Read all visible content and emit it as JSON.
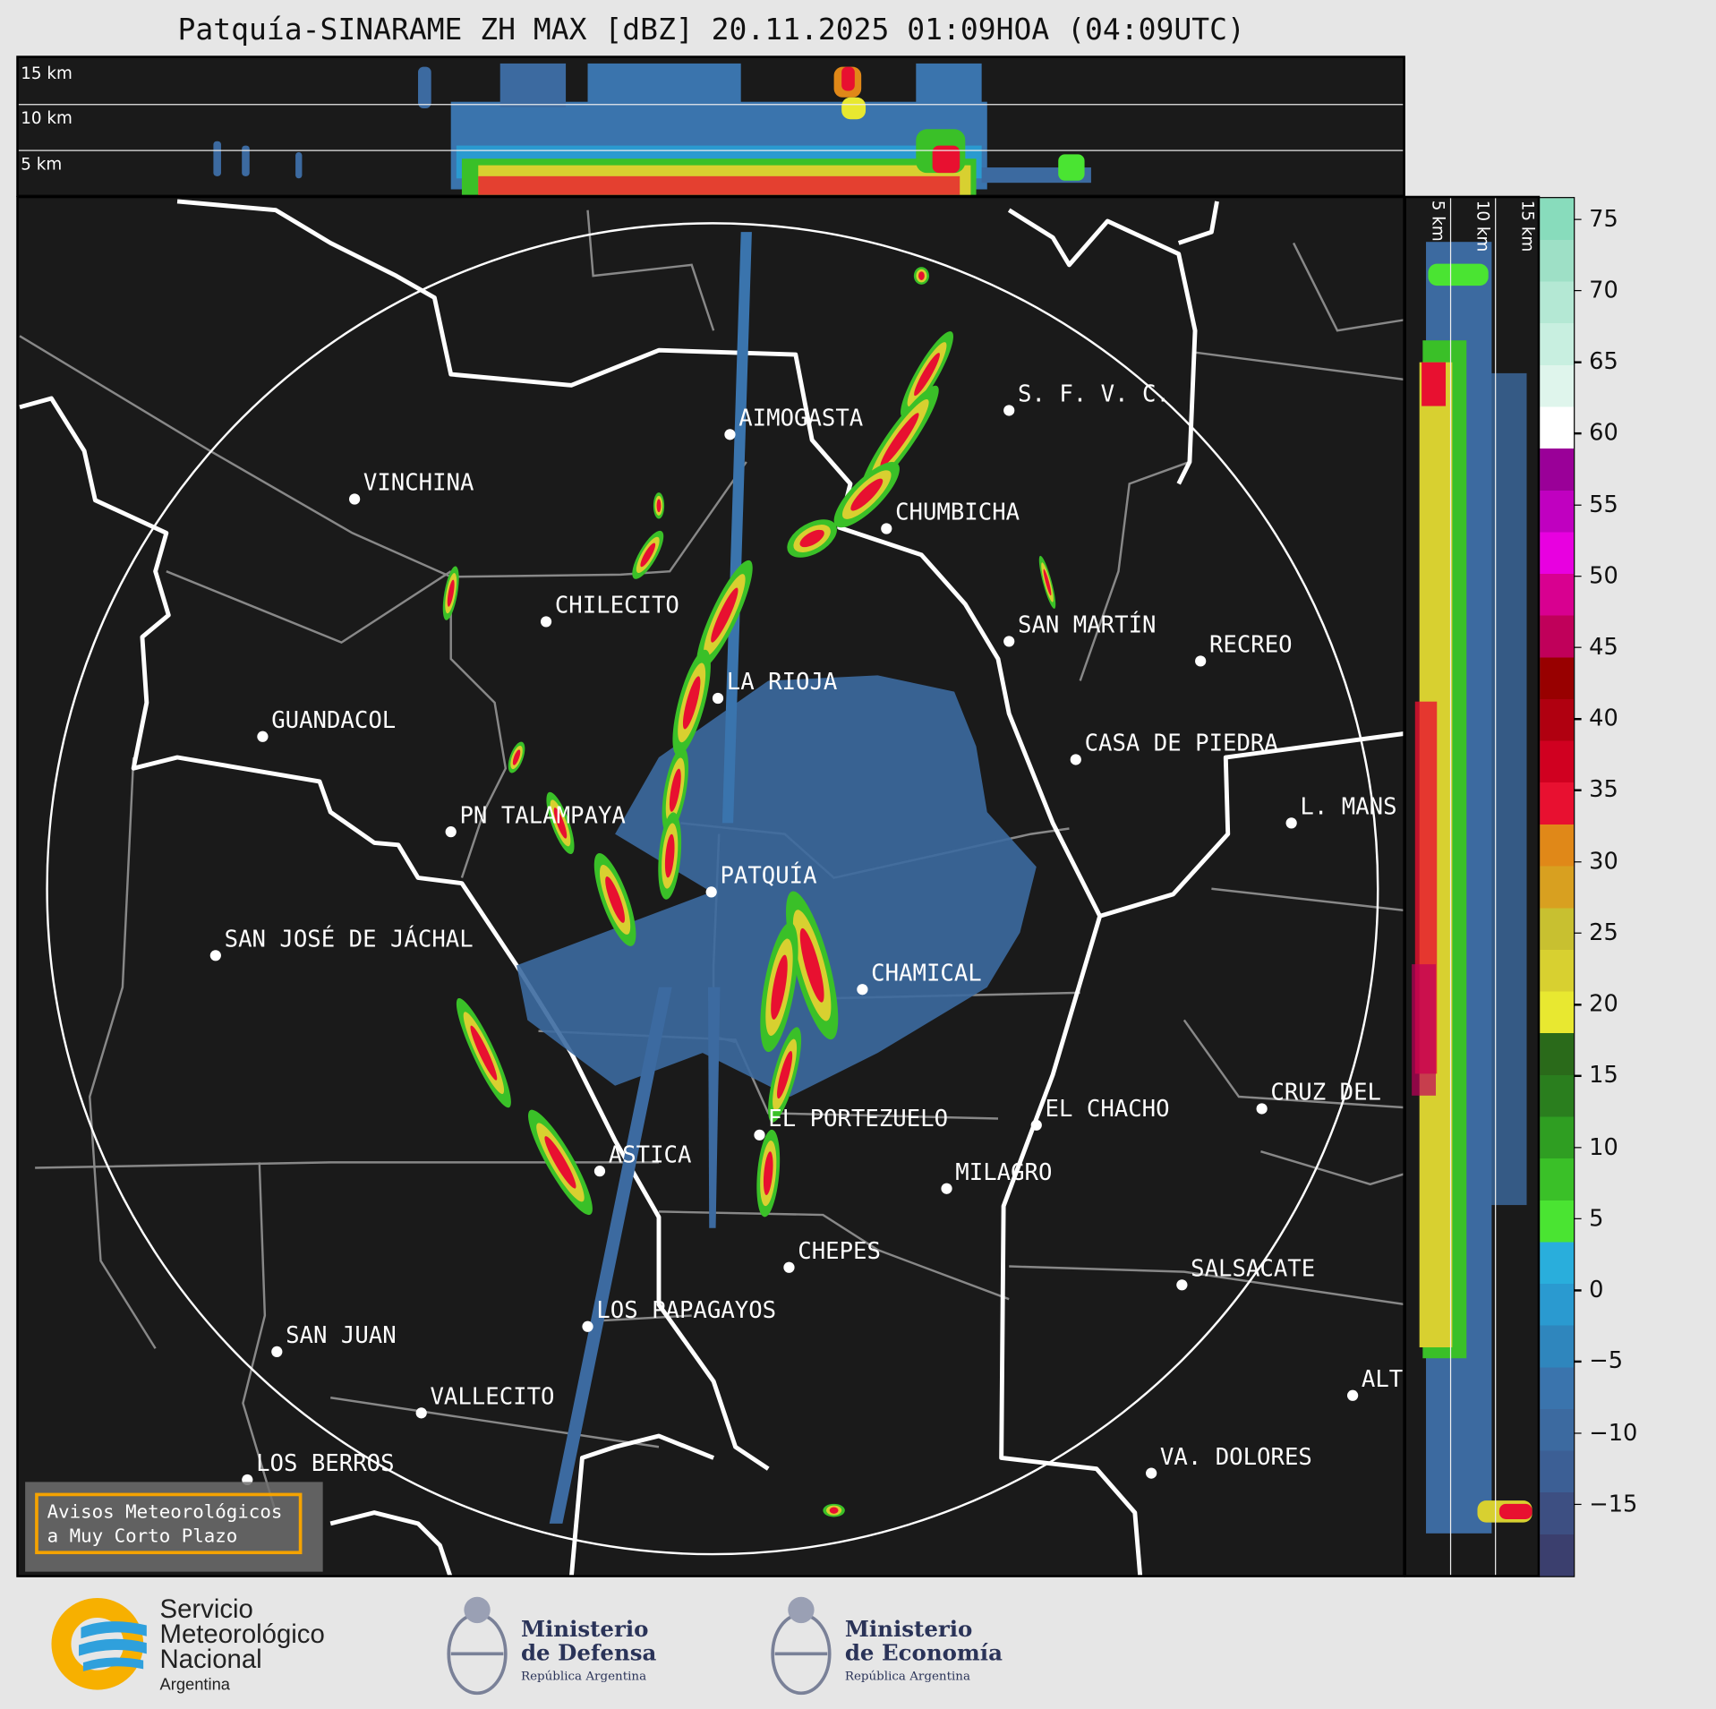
{
  "title": "Patquía-SINARAME ZH MAX [dBZ] 20.11.2025 01:09HOA (04:09UTC)",
  "height_labels": [
    "15 km",
    "10 km",
    "5 km"
  ],
  "colorbar": {
    "unit": "dBZ",
    "range": [
      -20,
      76.5
    ],
    "ticks": [
      75,
      70,
      65,
      60,
      55,
      50,
      45,
      40,
      35,
      30,
      25,
      20,
      15,
      10,
      5,
      0,
      -5,
      -10,
      -15
    ],
    "tick_labels": [
      "75",
      "70",
      "65",
      "60",
      "55",
      "50",
      "45",
      "40",
      "35",
      "30",
      "25",
      "20",
      "15",
      "10",
      "5",
      "0",
      "−5",
      "−10",
      "−15"
    ],
    "colors": [
      "#3b3f6e",
      "#3d4f82",
      "#3c5f95",
      "#3c6aa0",
      "#3a74ad",
      "#2f86bd",
      "#2a9ad0",
      "#29aedc",
      "#4ae432",
      "#3ac028",
      "#2f9e22",
      "#2a7e1e",
      "#2a6a1a",
      "#e8e830",
      "#d8d030",
      "#c8c030",
      "#d8a020",
      "#e08818",
      "#e81030",
      "#d00020",
      "#b00010",
      "#980000",
      "#c0005a",
      "#d80090",
      "#e800e0",
      "#c000c0",
      "#9a0098",
      "#ffffff",
      "#dff5ec",
      "#c8efe0",
      "#b4e8d4",
      "#9ee0c6",
      "#88dcbc"
    ]
  },
  "cities": [
    {
      "name": "AIMOGASTA"
    },
    {
      "name": "S. F. V. C."
    },
    {
      "name": "VINCHINA"
    },
    {
      "name": "CHUMBICHA"
    },
    {
      "name": "CHILECITO"
    },
    {
      "name": "SAN MARTÍN"
    },
    {
      "name": "RECREO"
    },
    {
      "name": "LA RIOJA"
    },
    {
      "name": "GUANDACOL"
    },
    {
      "name": "CASA DE PIEDRA"
    },
    {
      "name": "L. MANS"
    },
    {
      "name": "PN TALAMPAYA"
    },
    {
      "name": "PATQUÍA"
    },
    {
      "name": "SAN JOSÉ DE JÁCHAL"
    },
    {
      "name": "CHAMICAL"
    },
    {
      "name": "CRUZ DEL"
    },
    {
      "name": "EL CHACHO"
    },
    {
      "name": "EL PORTEZUELO"
    },
    {
      "name": "ASTICA"
    },
    {
      "name": "MILAGRO"
    },
    {
      "name": "CHEPES"
    },
    {
      "name": "SALSACATE"
    },
    {
      "name": "LOS PAPAGAYOS"
    },
    {
      "name": "SAN JUAN"
    },
    {
      "name": "ALT"
    },
    {
      "name": "VALLECITO"
    },
    {
      "name": "LOS BERROS"
    },
    {
      "name": "VA. DOLORES"
    }
  ],
  "aviso": {
    "line1": "Avisos Meteorológicos",
    "line2": "a Muy Corto Plazo"
  },
  "footer": {
    "smn": {
      "l1": "Servicio",
      "l2": "Meteorológico",
      "l3": "Nacional",
      "l4": "Argentina"
    },
    "defensa": {
      "l1": "Ministerio",
      "l2": "de Defensa",
      "l3": "República Argentina"
    },
    "economia": {
      "l1": "Ministerio",
      "l2": "de Economía",
      "l3": "República Argentina"
    }
  }
}
